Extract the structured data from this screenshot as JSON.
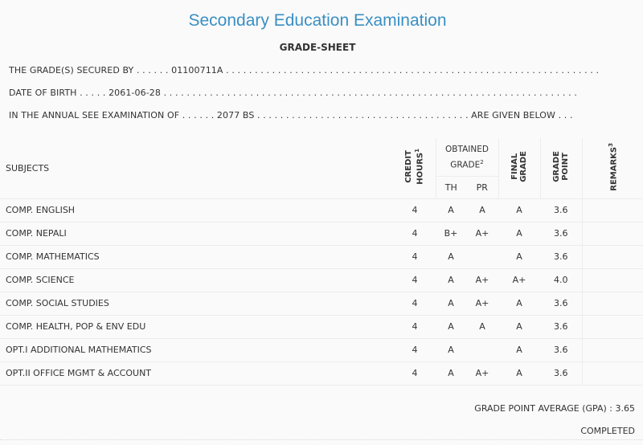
{
  "header": {
    "title": "Secondary Education Examination",
    "subtitle": "GRADE-SHEET"
  },
  "info": {
    "secured_by": "THE GRADE(S) SECURED BY . . . . . . 01100711A . . . . . . . . . . . . . . . . . . . . . . . . . . . . . . . . . . . . . . . . . . . . . . . . . . . . . . . . . . . . . . . . .",
    "dob": "DATE OF BIRTH . . . . . 2061-06-28 . . . . . . . . . . . . . . . . . . . . . . . . . . . . . . . . . . . . . . . . . . . . . . . . . . . . . . . . . . . . . . . . . . . . . . . .",
    "exam": "IN THE ANNUAL SEE EXAMINATION OF . . . . . . 2077 BS . . . . . . . . . . . . . . . . . . . . . . . . . . . . . . . . . . . . . ARE GIVEN BELOW . . ."
  },
  "table": {
    "col_subjects": "SUBJECTS",
    "col_credit_l1": "CREDIT",
    "col_credit_l2": "HOURS",
    "col_credit_sup": "1",
    "col_obtained_l1": "OBTAINED",
    "col_obtained_l2": "GRADE",
    "col_obtained_sup": "2",
    "col_th": "TH",
    "col_pr": "PR",
    "col_final_l1": "FINAL",
    "col_final_l2": "GRADE",
    "col_gp_l1": "GRADE",
    "col_gp_l2": "POINT",
    "col_remarks": "REMARKS",
    "col_remarks_sup": "3",
    "rows": [
      {
        "subject": "COMP. ENGLISH",
        "credit": "4",
        "th": "A",
        "pr": "A",
        "final": "A",
        "gp": "3.6",
        "remarks": ""
      },
      {
        "subject": "COMP. NEPALI",
        "credit": "4",
        "th": "B+",
        "pr": "A+",
        "final": "A",
        "gp": "3.6",
        "remarks": ""
      },
      {
        "subject": "COMP. MATHEMATICS",
        "credit": "4",
        "th": "A",
        "pr": "",
        "final": "A",
        "gp": "3.6",
        "remarks": ""
      },
      {
        "subject": "COMP. SCIENCE",
        "credit": "4",
        "th": "A",
        "pr": "A+",
        "final": "A+",
        "gp": "4.0",
        "remarks": ""
      },
      {
        "subject": "COMP. SOCIAL STUDIES",
        "credit": "4",
        "th": "A",
        "pr": "A+",
        "final": "A",
        "gp": "3.6",
        "remarks": ""
      },
      {
        "subject": "COMP. HEALTH, POP & ENV EDU",
        "credit": "4",
        "th": "A",
        "pr": "A",
        "final": "A",
        "gp": "3.6",
        "remarks": ""
      },
      {
        "subject": "OPT.I ADDITIONAL MATHEMATICS",
        "credit": "4",
        "th": "A",
        "pr": "",
        "final": "A",
        "gp": "3.6",
        "remarks": ""
      },
      {
        "subject": "OPT.II OFFICE MGMT & ACCOUNT",
        "credit": "4",
        "th": "A",
        "pr": "A+",
        "final": "A",
        "gp": "3.6",
        "remarks": ""
      }
    ]
  },
  "summary": {
    "gpa": "GRADE POINT AVERAGE (GPA) : 3.65",
    "status": "COMPLETED"
  }
}
